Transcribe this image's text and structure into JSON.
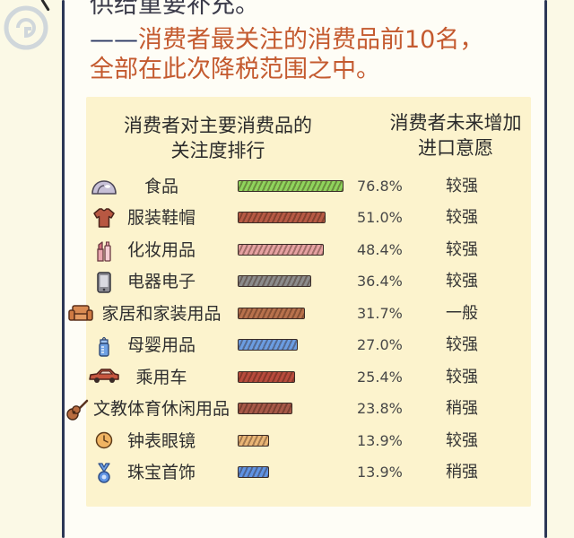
{
  "intro": {
    "line1": "供给重要补充。",
    "line2_dash": "——",
    "line2_text": "消费者最关注的消费品前10名，",
    "line3": "全部在此次降税范围之中。"
  },
  "colors": {
    "accent_text": "#c45a2f",
    "frame": "#2c3756",
    "chart_background": "#fcf3cd"
  },
  "chart_data": {
    "type": "bar",
    "orientation": "horizontal",
    "title": [
      "消费者对主要消费品的",
      "关注度排行"
    ],
    "import_willingness_header": [
      "消费者未来增加",
      "进口意愿"
    ],
    "categories": [
      "食品",
      "服装鞋帽",
      "化妆用品",
      "电器电子",
      "家居和家装用品",
      "母婴用品",
      "乘用车",
      "文教体育休闲用品",
      "钟表眼镜",
      "珠宝首饰"
    ],
    "values": [
      76.8,
      51.0,
      48.4,
      36.4,
      31.7,
      27.0,
      25.4,
      23.8,
      13.9,
      13.9
    ],
    "value_labels": [
      "76.8%",
      "51.0%",
      "48.4%",
      "36.4%",
      "31.7%",
      "27.0%",
      "25.4%",
      "23.8%",
      "13.9%",
      "13.9%"
    ],
    "import_willingness": [
      "较强",
      "较强",
      "较强",
      "较强",
      "一般",
      "较强",
      "较强",
      "稍强",
      "较强",
      "稍强"
    ],
    "category_icons": [
      "bread-icon",
      "shirt-icon",
      "cosmetics-icon",
      "phone-icon",
      "sofa-icon",
      "baby-bottle-icon",
      "car-icon",
      "guitar-icon",
      "clock-icon",
      "pendant-icon"
    ],
    "bar_colors": [
      "#8fd45c",
      "#b75a44",
      "#e6a2a2",
      "#8c8c8c",
      "#b8714c",
      "#6b9de2",
      "#b84b3c",
      "#a75847",
      "#eab676",
      "#5f93e3"
    ],
    "grid": false,
    "legend": "none"
  }
}
